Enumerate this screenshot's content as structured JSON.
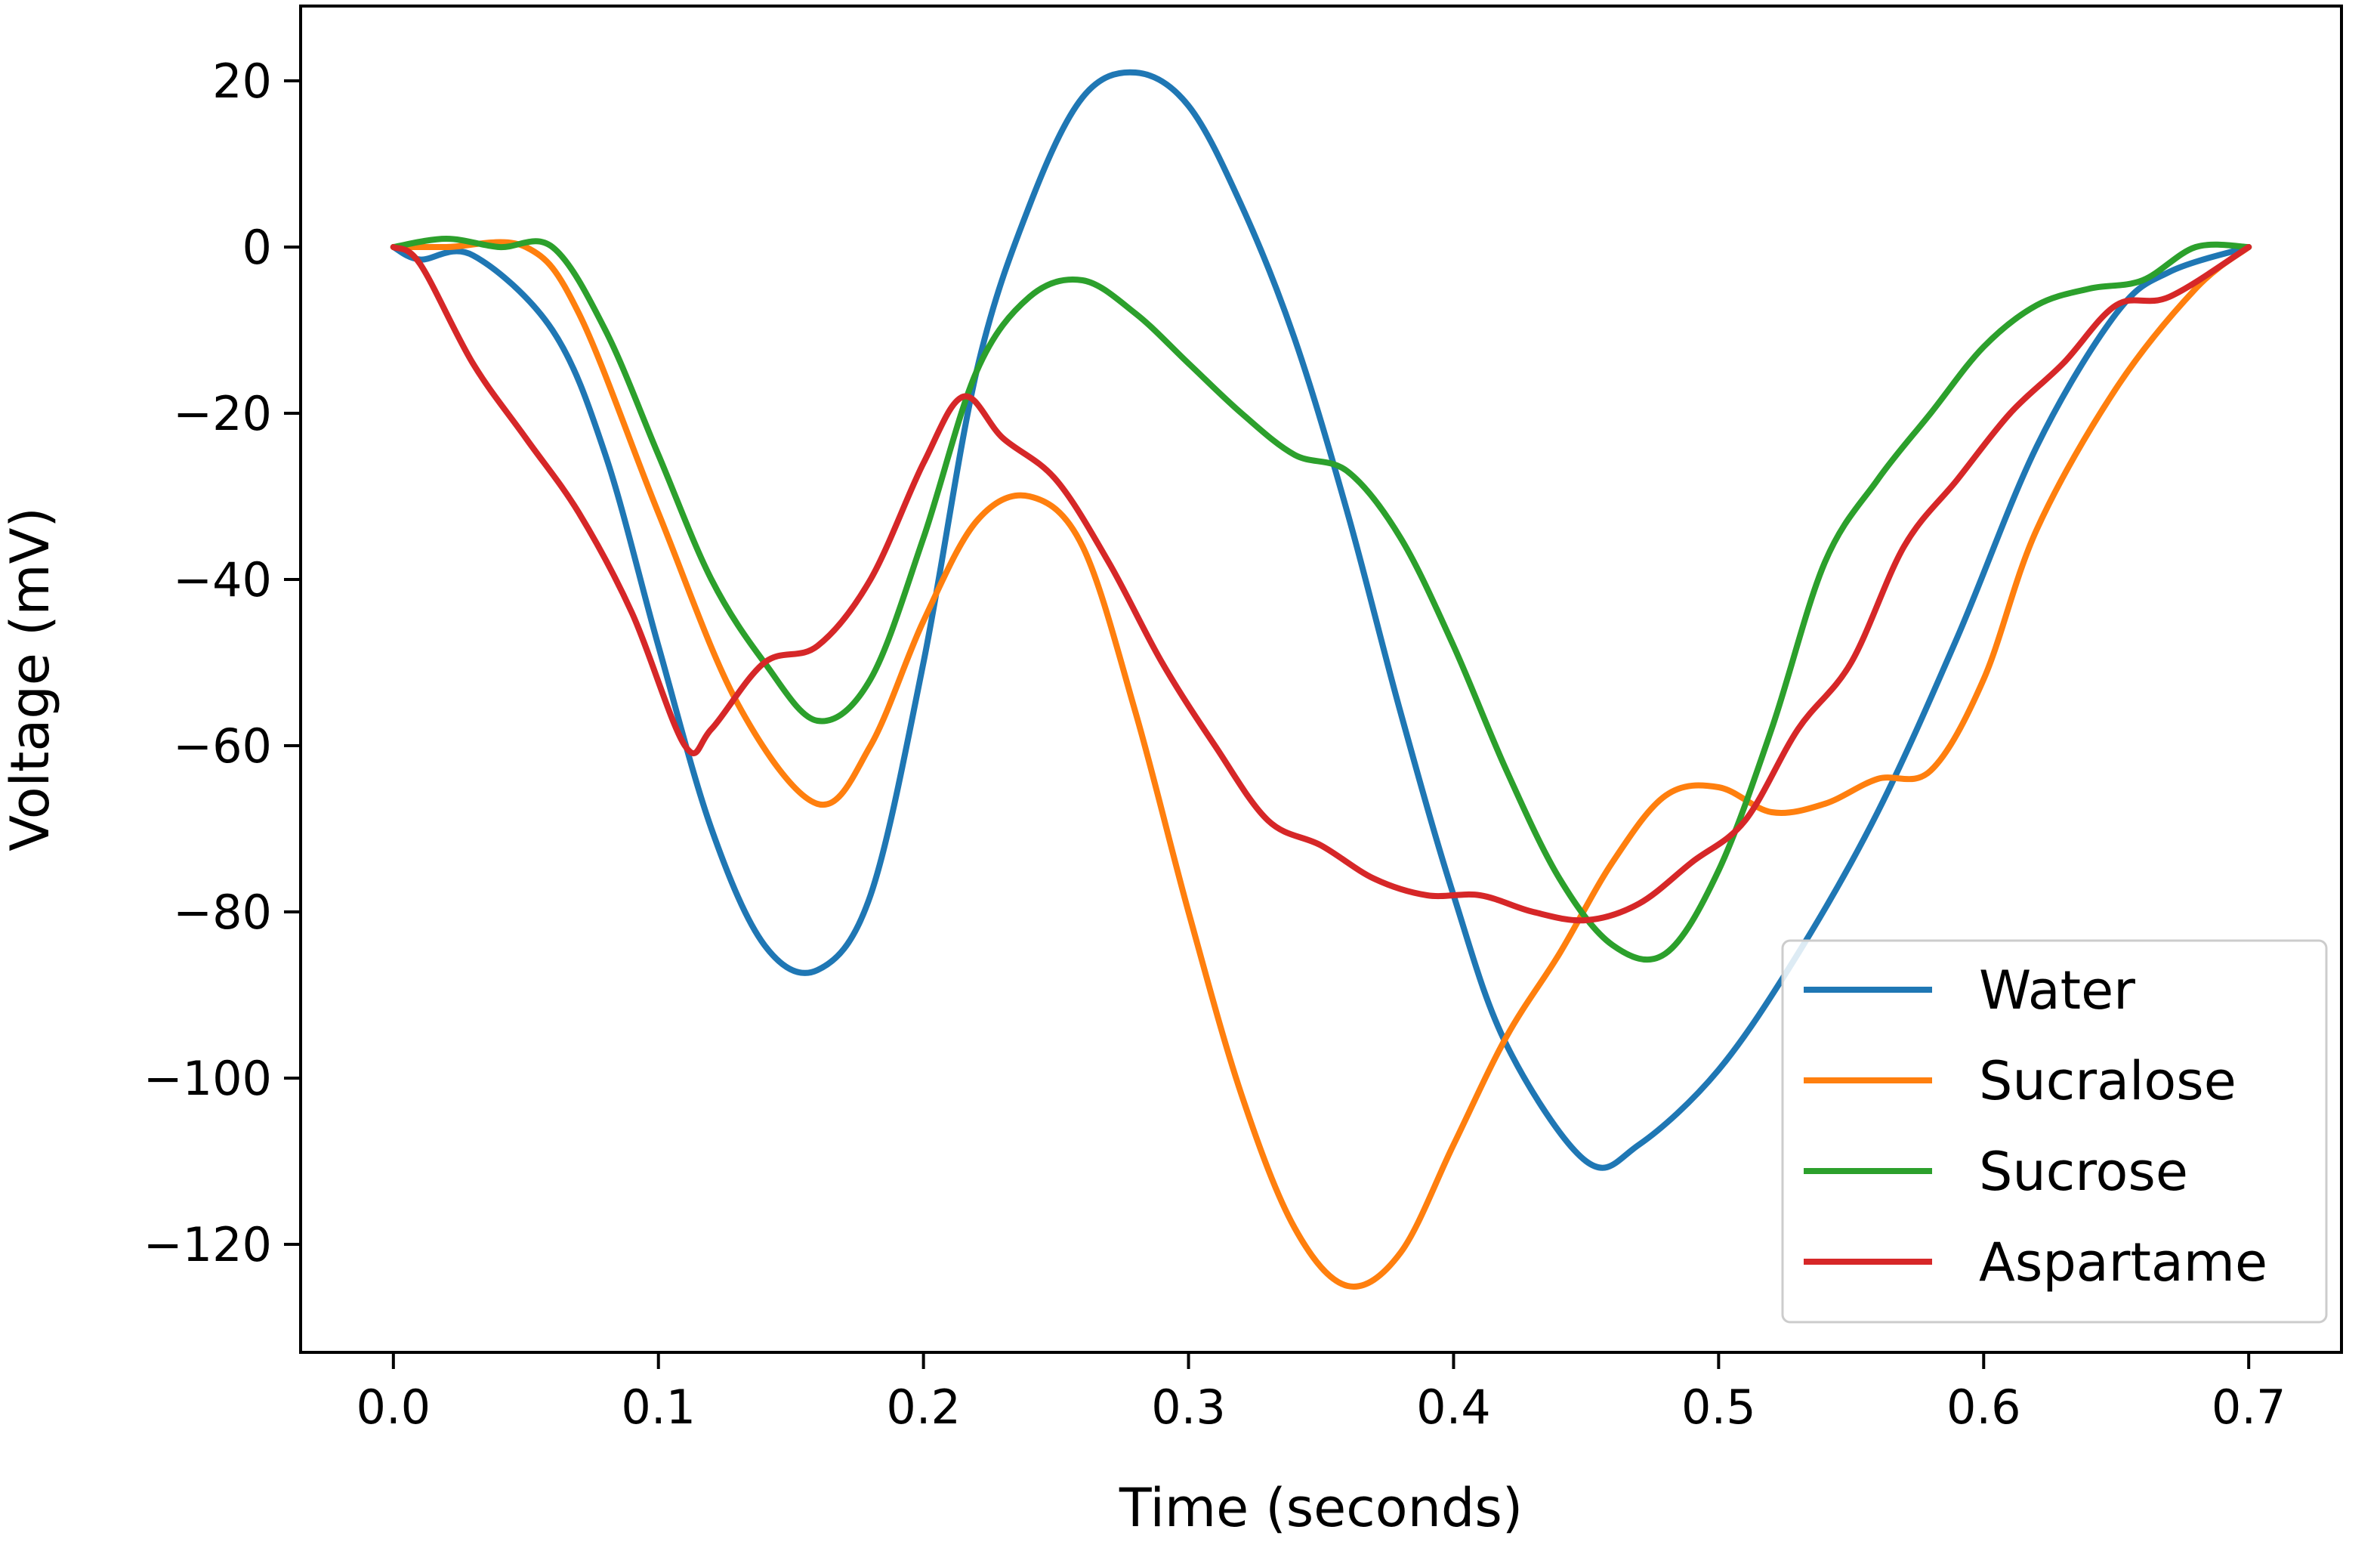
{
  "chart_data": {
    "type": "line",
    "title": "",
    "xlabel": "Time (seconds)",
    "ylabel": "Voltage (mV)",
    "xlim": [
      -0.035,
      0.735
    ],
    "ylim": [
      -133,
      29
    ],
    "xticks": [
      0.0,
      0.1,
      0.2,
      0.3,
      0.4,
      0.5,
      0.6,
      0.7
    ],
    "xtick_labels": [
      "0.0",
      "0.1",
      "0.2",
      "0.3",
      "0.4",
      "0.5",
      "0.6",
      "0.7"
    ],
    "yticks": [
      20,
      0,
      -20,
      -40,
      -60,
      -80,
      -100,
      -120
    ],
    "ytick_labels": [
      "20",
      "0",
      "−20",
      "−40",
      "−60",
      "−80",
      "−100",
      "−120"
    ],
    "grid": false,
    "legend_position": "lower-right",
    "series": [
      {
        "name": "Water",
        "color": "#1f77b4",
        "x": [
          0.0,
          0.01,
          0.03,
          0.06,
          0.08,
          0.1,
          0.12,
          0.14,
          0.16,
          0.18,
          0.2,
          0.22,
          0.24,
          0.26,
          0.28,
          0.3,
          0.32,
          0.34,
          0.36,
          0.38,
          0.4,
          0.42,
          0.45,
          0.47,
          0.5,
          0.53,
          0.56,
          0.59,
          0.62,
          0.65,
          0.67,
          0.7
        ],
        "y": [
          0,
          -1.5,
          -1,
          -10,
          -25,
          -48,
          -70,
          -84,
          -87,
          -78,
          -50,
          -15,
          5,
          18,
          21,
          17,
          5,
          -11,
          -32,
          -56,
          -78,
          -96,
          -110,
          -108,
          -99,
          -85,
          -68,
          -47,
          -24,
          -8,
          -3,
          0
        ]
      },
      {
        "name": "Sucralose",
        "color": "#ff7f0e",
        "x": [
          0.0,
          0.02,
          0.05,
          0.07,
          0.1,
          0.13,
          0.16,
          0.18,
          0.2,
          0.22,
          0.24,
          0.26,
          0.28,
          0.3,
          0.32,
          0.34,
          0.36,
          0.38,
          0.4,
          0.42,
          0.44,
          0.46,
          0.48,
          0.5,
          0.52,
          0.54,
          0.56,
          0.58,
          0.6,
          0.62,
          0.65,
          0.68,
          0.7
        ],
        "y": [
          0,
          0,
          0,
          -8,
          -32,
          -55,
          -67,
          -60,
          -45,
          -33,
          -30,
          -36,
          -56,
          -80,
          -102,
          -118,
          -125,
          -121,
          -108,
          -95,
          -85,
          -74,
          -66,
          -65,
          -68,
          -67,
          -64,
          -63,
          -52,
          -34,
          -17,
          -5,
          0
        ]
      },
      {
        "name": "Sucrose",
        "color": "#2ca02c",
        "x": [
          0.0,
          0.02,
          0.04,
          0.06,
          0.08,
          0.1,
          0.12,
          0.14,
          0.16,
          0.18,
          0.2,
          0.22,
          0.24,
          0.26,
          0.28,
          0.3,
          0.32,
          0.34,
          0.36,
          0.38,
          0.4,
          0.42,
          0.44,
          0.46,
          0.48,
          0.5,
          0.52,
          0.54,
          0.56,
          0.58,
          0.6,
          0.62,
          0.64,
          0.66,
          0.68,
          0.7
        ],
        "y": [
          0,
          1,
          0,
          0,
          -10,
          -25,
          -40,
          -50,
          -57,
          -52,
          -35,
          -15,
          -6,
          -4,
          -8,
          -14,
          -20,
          -25,
          -27,
          -35,
          -48,
          -63,
          -76,
          -84,
          -85,
          -75,
          -58,
          -38,
          -28,
          -20,
          -12,
          -7,
          -5,
          -4,
          0,
          0
        ]
      },
      {
        "name": "Aspartame",
        "color": "#d62728",
        "x": [
          0.0,
          0.01,
          0.03,
          0.05,
          0.07,
          0.09,
          0.11,
          0.12,
          0.14,
          0.16,
          0.18,
          0.2,
          0.215,
          0.23,
          0.25,
          0.27,
          0.29,
          0.31,
          0.33,
          0.35,
          0.37,
          0.39,
          0.41,
          0.43,
          0.45,
          0.47,
          0.49,
          0.51,
          0.53,
          0.55,
          0.57,
          0.59,
          0.61,
          0.63,
          0.65,
          0.67,
          0.7
        ],
        "y": [
          0,
          -2,
          -14,
          -23,
          -32,
          -44,
          -60,
          -58,
          -50,
          -48,
          -40,
          -26,
          -18,
          -23,
          -28,
          -38,
          -50,
          -60,
          -69,
          -72,
          -76,
          -78,
          -78,
          -80,
          -81,
          -79,
          -74,
          -69,
          -58,
          -50,
          -36,
          -28,
          -20,
          -14,
          -7,
          -6,
          0
        ]
      }
    ]
  }
}
